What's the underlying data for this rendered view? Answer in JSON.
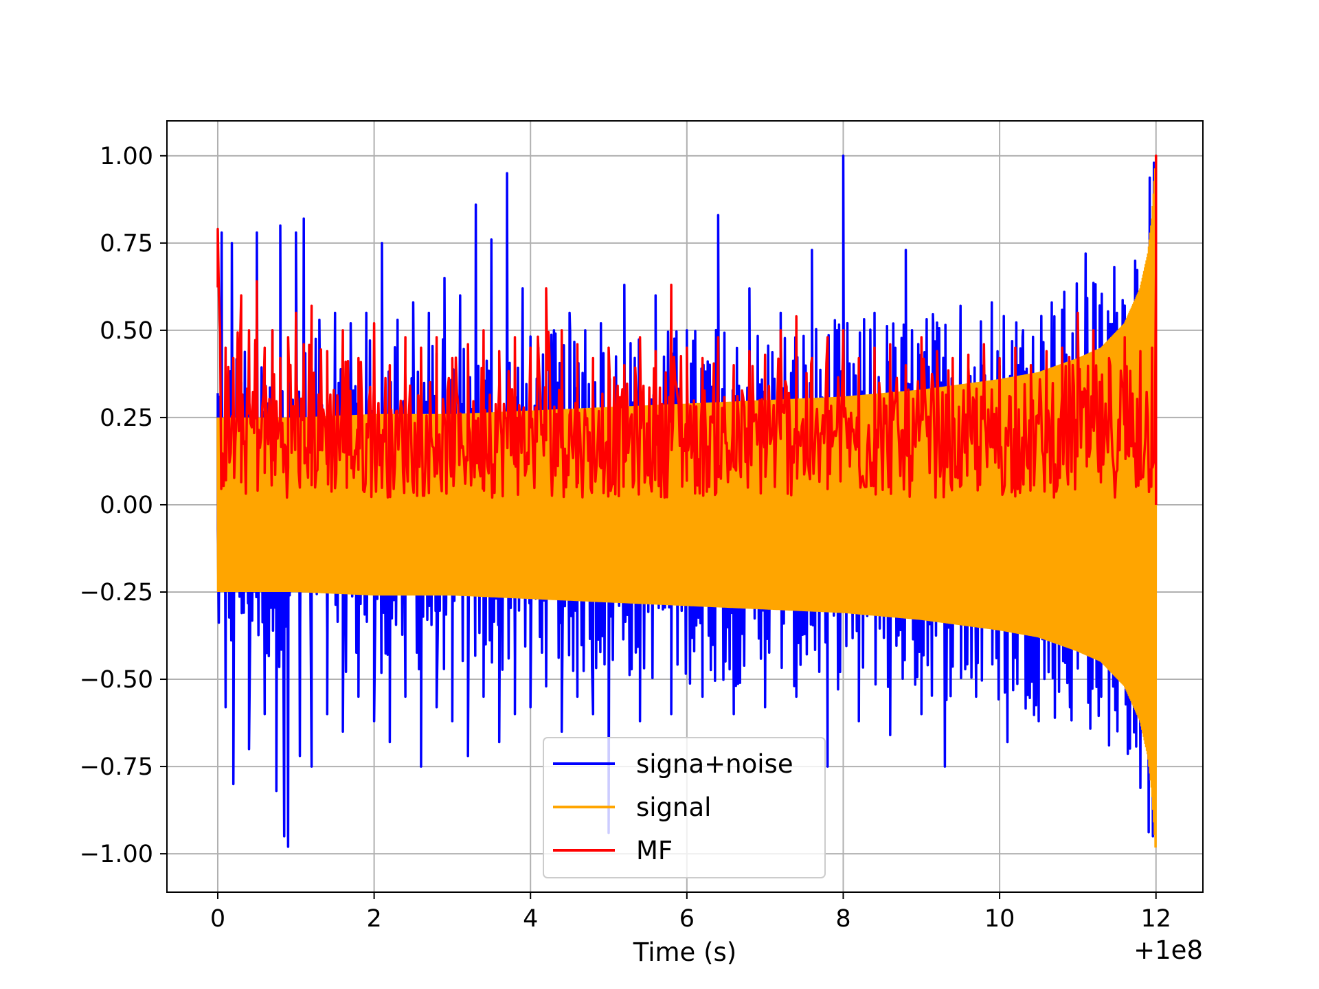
{
  "chart_data": {
    "type": "line",
    "title": "",
    "xlabel": "Time (s)",
    "ylabel": "",
    "x_offset_label": "+1e8",
    "xlim": [
      -0.65,
      12.6
    ],
    "ylim": [
      -1.11,
      1.1
    ],
    "xticks": [
      0,
      2,
      4,
      6,
      8,
      10,
      12
    ],
    "xtick_labels": [
      "0",
      "2",
      "4",
      "6",
      "8",
      "10",
      "12"
    ],
    "yticks": [
      1.0,
      0.75,
      0.5,
      0.25,
      0.0,
      -0.25,
      -0.5,
      -0.75,
      -1.0
    ],
    "ytick_labels": [
      "1.00",
      "0.75",
      "0.50",
      "0.25",
      "0.00",
      "−0.25",
      "−0.50",
      "−0.75",
      "−1.00"
    ],
    "grid": true,
    "legend_position": "lower center",
    "series": [
      {
        "name": "signa+noise",
        "color": "#0000ff",
        "x": [
          0.0,
          0.05,
          0.1,
          0.18,
          0.2,
          0.3,
          0.4,
          0.5,
          0.6,
          0.7,
          0.75,
          0.8,
          0.85,
          0.9,
          1.0,
          1.05,
          1.1,
          1.2,
          1.3,
          1.4,
          1.5,
          1.6,
          1.7,
          1.8,
          1.9,
          2.0,
          2.1,
          2.2,
          2.3,
          2.4,
          2.5,
          2.6,
          2.7,
          2.8,
          2.9,
          3.0,
          3.1,
          3.2,
          3.3,
          3.4,
          3.5,
          3.6,
          3.7,
          3.8,
          3.9,
          4.0,
          4.1,
          4.2,
          4.3,
          4.4,
          4.5,
          4.6,
          4.7,
          4.8,
          4.9,
          5.0,
          5.2,
          5.4,
          5.6,
          5.8,
          6.0,
          6.2,
          6.4,
          6.6,
          6.8,
          7.0,
          7.2,
          7.4,
          7.6,
          7.8,
          8.0,
          8.2,
          8.4,
          8.6,
          8.8,
          9.0,
          9.15,
          9.3,
          9.5,
          9.7,
          9.9,
          10.1,
          10.3,
          10.5,
          10.7,
          10.9,
          11.1,
          11.3,
          11.5,
          11.7,
          11.9,
          12.0
        ],
        "values": [
          -0.07,
          0.78,
          -0.58,
          0.75,
          -0.8,
          0.35,
          -0.7,
          0.78,
          -0.6,
          0.5,
          -0.82,
          0.8,
          -0.95,
          -0.98,
          0.78,
          -0.72,
          0.82,
          -0.75,
          0.53,
          -0.6,
          0.55,
          -0.65,
          0.52,
          -0.55,
          0.55,
          -0.62,
          0.75,
          -0.68,
          0.53,
          -0.55,
          0.58,
          -0.75,
          0.55,
          -0.58,
          0.65,
          -0.62,
          0.6,
          -0.72,
          0.86,
          -0.55,
          0.76,
          -0.68,
          0.95,
          -0.6,
          0.62,
          -0.58,
          0.45,
          -0.52,
          0.5,
          -0.65,
          0.55,
          -0.55,
          0.5,
          -0.6,
          0.52,
          -0.94,
          0.63,
          -0.62,
          0.6,
          -0.6,
          0.5,
          -0.55,
          0.83,
          -0.6,
          0.62,
          -0.58,
          0.55,
          -0.55,
          0.73,
          -0.75,
          1.0,
          -0.62,
          0.55,
          -0.66,
          0.73,
          -0.6,
          0.52,
          -0.75,
          0.57,
          -0.55,
          0.58,
          -0.68,
          0.5,
          -0.62,
          0.54,
          -0.58,
          0.72,
          -0.55,
          0.55,
          -0.55,
          0.0,
          0.0
        ]
      },
      {
        "name": "signal",
        "color": "#ffa500",
        "envelope_x": [
          0,
          1,
          2,
          3,
          4,
          5,
          6,
          7,
          8,
          9,
          10,
          10.5,
          11,
          11.3,
          11.6,
          11.8,
          11.9,
          11.95,
          12.0
        ],
        "envelope_values": [
          0.25,
          0.25,
          0.26,
          0.26,
          0.27,
          0.28,
          0.29,
          0.3,
          0.31,
          0.33,
          0.36,
          0.38,
          0.42,
          0.45,
          0.52,
          0.62,
          0.72,
          0.82,
          1.0
        ]
      },
      {
        "name": "MF",
        "color": "#ff0000",
        "x": [
          0.0,
          0.1,
          0.2,
          0.3,
          0.4,
          0.5,
          0.6,
          0.7,
          0.8,
          0.9,
          1.0,
          1.1,
          1.2,
          1.4,
          1.6,
          1.8,
          2.0,
          2.2,
          2.4,
          2.6,
          2.8,
          3.0,
          3.2,
          3.4,
          3.6,
          3.8,
          4.0,
          4.2,
          4.4,
          4.6,
          4.8,
          5.0,
          5.2,
          5.4,
          5.6,
          5.8,
          6.0,
          6.2,
          6.4,
          6.6,
          6.8,
          7.0,
          7.2,
          7.4,
          7.6,
          7.8,
          8.0,
          8.2,
          8.4,
          8.6,
          8.8,
          9.0,
          9.2,
          9.4,
          9.6,
          9.8,
          10.0,
          10.2,
          10.4,
          10.6,
          10.8,
          11.0,
          11.2,
          11.4,
          11.6,
          11.8,
          11.95,
          12.0
        ],
        "values": [
          0.79,
          0.45,
          0.42,
          0.6,
          0.5,
          0.64,
          0.45,
          0.5,
          0.42,
          0.48,
          0.55,
          0.46,
          0.57,
          0.44,
          0.5,
          0.42,
          0.52,
          0.4,
          0.48,
          0.45,
          0.48,
          0.42,
          0.46,
          0.5,
          0.44,
          0.48,
          0.45,
          0.62,
          0.5,
          0.46,
          0.42,
          0.45,
          0.4,
          0.48,
          0.44,
          0.63,
          0.45,
          0.42,
          0.48,
          0.4,
          0.44,
          0.43,
          0.5,
          0.54,
          0.42,
          0.48,
          0.5,
          0.42,
          0.45,
          0.46,
          0.4,
          0.48,
          0.44,
          0.42,
          0.43,
          0.46,
          0.42,
          0.45,
          0.4,
          0.44,
          0.45,
          0.55,
          0.5,
          0.42,
          0.48,
          0.44,
          0.45,
          1.0
        ]
      }
    ]
  }
}
